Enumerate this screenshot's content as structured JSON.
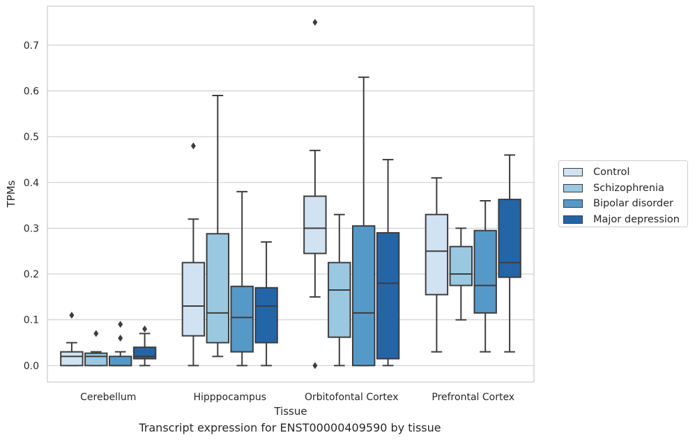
{
  "chart_data": {
    "type": "box",
    "caption": "Transcript expression for ENST00000409590 by tissue",
    "xlabel": "Tissue",
    "ylabel": "TPMs",
    "ylim": [
      -0.036,
      0.785
    ],
    "yticks": [
      0.0,
      0.1,
      0.2,
      0.3,
      0.4,
      0.5,
      0.6,
      0.7
    ],
    "ytick_labels": [
      "0.0",
      "0.1",
      "0.2",
      "0.3",
      "0.4",
      "0.5",
      "0.6",
      "0.7"
    ],
    "grid": "horizontal",
    "legend_position": "right",
    "categories": [
      "Cerebellum",
      "Hipppocampus",
      "Orbitofontal Cortex",
      "Prefrontal Cortex"
    ],
    "series": [
      {
        "name": "Control",
        "color": "#d1e2f2",
        "boxes": [
          {
            "whisker_low": 0.0,
            "q1": 0.0,
            "median": 0.02,
            "q3": 0.03,
            "whisker_high": 0.05,
            "outliers": [
              0.11
            ]
          },
          {
            "whisker_low": 0.0,
            "q1": 0.065,
            "median": 0.13,
            "q3": 0.225,
            "whisker_high": 0.32,
            "outliers": [
              0.48
            ]
          },
          {
            "whisker_low": 0.15,
            "q1": 0.245,
            "median": 0.3,
            "q3": 0.37,
            "whisker_high": 0.47,
            "outliers": [
              0.75,
              0.0
            ]
          },
          {
            "whisker_low": 0.03,
            "q1": 0.155,
            "median": 0.25,
            "q3": 0.33,
            "whisker_high": 0.41,
            "outliers": []
          }
        ]
      },
      {
        "name": "Schizophrenia",
        "color": "#9ac8e0",
        "boxes": [
          {
            "whisker_low": 0.0,
            "q1": 0.0,
            "median": 0.02,
            "q3": 0.027,
            "whisker_high": 0.03,
            "outliers": [
              0.07
            ]
          },
          {
            "whisker_low": 0.02,
            "q1": 0.05,
            "median": 0.115,
            "q3": 0.288,
            "whisker_high": 0.59,
            "outliers": []
          },
          {
            "whisker_low": 0.0,
            "q1": 0.062,
            "median": 0.165,
            "q3": 0.225,
            "whisker_high": 0.33,
            "outliers": []
          },
          {
            "whisker_low": 0.1,
            "q1": 0.175,
            "median": 0.2,
            "q3": 0.26,
            "whisker_high": 0.3,
            "outliers": []
          }
        ]
      },
      {
        "name": "Bipolar disorder",
        "color": "#5599c8",
        "boxes": [
          {
            "whisker_low": 0.0,
            "q1": 0.0,
            "median": 0.0,
            "q3": 0.02,
            "whisker_high": 0.03,
            "outliers": [
              0.09,
              0.06
            ]
          },
          {
            "whisker_low": 0.0,
            "q1": 0.03,
            "median": 0.105,
            "q3": 0.173,
            "whisker_high": 0.38,
            "outliers": []
          },
          {
            "whisker_low": 0.0,
            "q1": 0.0,
            "median": 0.115,
            "q3": 0.305,
            "whisker_high": 0.63,
            "outliers": []
          },
          {
            "whisker_low": 0.03,
            "q1": 0.115,
            "median": 0.175,
            "q3": 0.295,
            "whisker_high": 0.36,
            "outliers": []
          }
        ]
      },
      {
        "name": "Major depression",
        "color": "#2465a8",
        "boxes": [
          {
            "whisker_low": 0.0,
            "q1": 0.015,
            "median": 0.02,
            "q3": 0.04,
            "whisker_high": 0.07,
            "outliers": [
              0.08
            ]
          },
          {
            "whisker_low": 0.0,
            "q1": 0.05,
            "median": 0.13,
            "q3": 0.17,
            "whisker_high": 0.27,
            "outliers": []
          },
          {
            "whisker_low": 0.0,
            "q1": 0.015,
            "median": 0.18,
            "q3": 0.29,
            "whisker_high": 0.45,
            "outliers": []
          },
          {
            "whisker_low": 0.03,
            "q1": 0.193,
            "median": 0.225,
            "q3": 0.363,
            "whisker_high": 0.46,
            "outliers": []
          }
        ]
      }
    ]
  }
}
